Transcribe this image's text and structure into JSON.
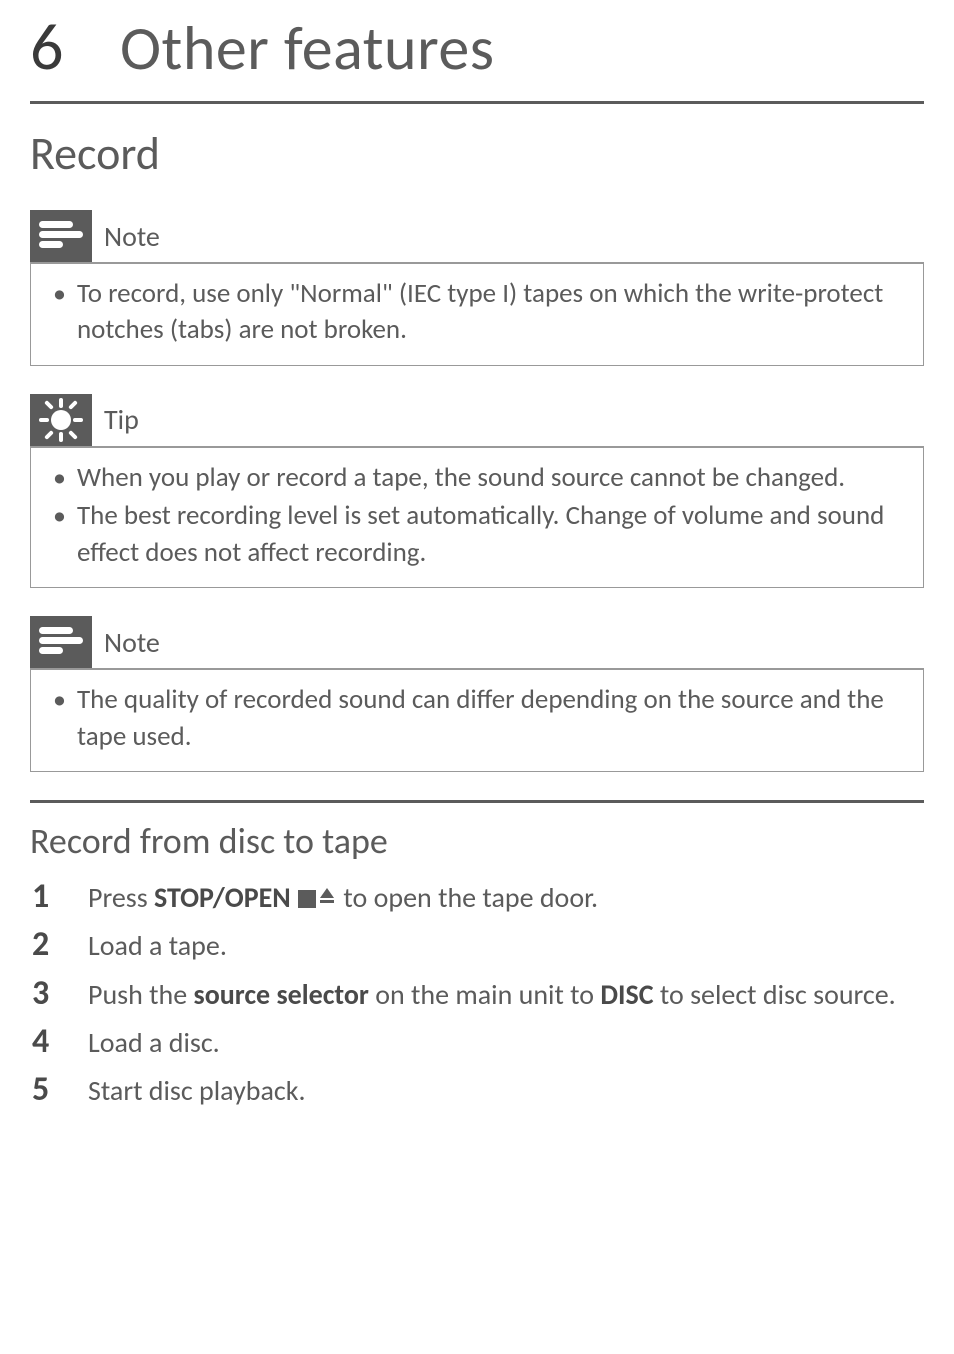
{
  "colors": {
    "text": "#5b5b5b",
    "rule": "#5b5b5b",
    "box_border": "#999999",
    "icon_bg": "#5b5b5b",
    "icon_fg": "#ffffff",
    "background": "#ffffff"
  },
  "typography": {
    "chapter_num_pt": 50,
    "chapter_title_pt": 47,
    "h2_pt": 35,
    "h3_pt": 27,
    "body_pt": 20,
    "step_num_pt": 26,
    "callout_label_pt": 21,
    "family": "Gill Sans"
  },
  "chapter": {
    "number": "6",
    "title": "Other features"
  },
  "section": {
    "title": "Record"
  },
  "callouts": [
    {
      "kind": "note",
      "label": "Note",
      "items": [
        "To record, use only \"Normal\" (IEC type I) tapes on which the write-protect notches (tabs) are not broken."
      ]
    },
    {
      "kind": "tip",
      "label": "Tip",
      "items": [
        "When you play or record a tape, the sound source cannot be changed.",
        "The best recording level is set automatically. Change of volume and sound effect does not affect recording."
      ]
    },
    {
      "kind": "note",
      "label": "Note",
      "items": [
        "The quality of recorded sound can differ depending on the source and the tape used."
      ]
    }
  ],
  "subsection": {
    "title": "Record from disc to tape"
  },
  "steps": [
    {
      "n": "1",
      "html": "Press <strong>STOP/OPEN</strong> <span class='icon-stop' data-name='stop-icon' data-interactable='false'></span><span class='icon-eject' data-name='eject-icon' data-interactable='false'><svg width='18' height='18' viewBox='0 0 18 18'><polygon points='9,2 16,12 2,12' fill='#5b5b5b'/><rect x='2' y='14' width='14' height='3' fill='#5b5b5b'/></svg></span> to open the tape door."
    },
    {
      "n": "2",
      "html": "Load a tape."
    },
    {
      "n": "3",
      "html": "Push the <strong>source selector</strong> on the main unit to <strong>DISC</strong> to select disc source."
    },
    {
      "n": "4",
      "html": "Load a disc."
    },
    {
      "n": "5",
      "html": "Start disc playback."
    }
  ]
}
